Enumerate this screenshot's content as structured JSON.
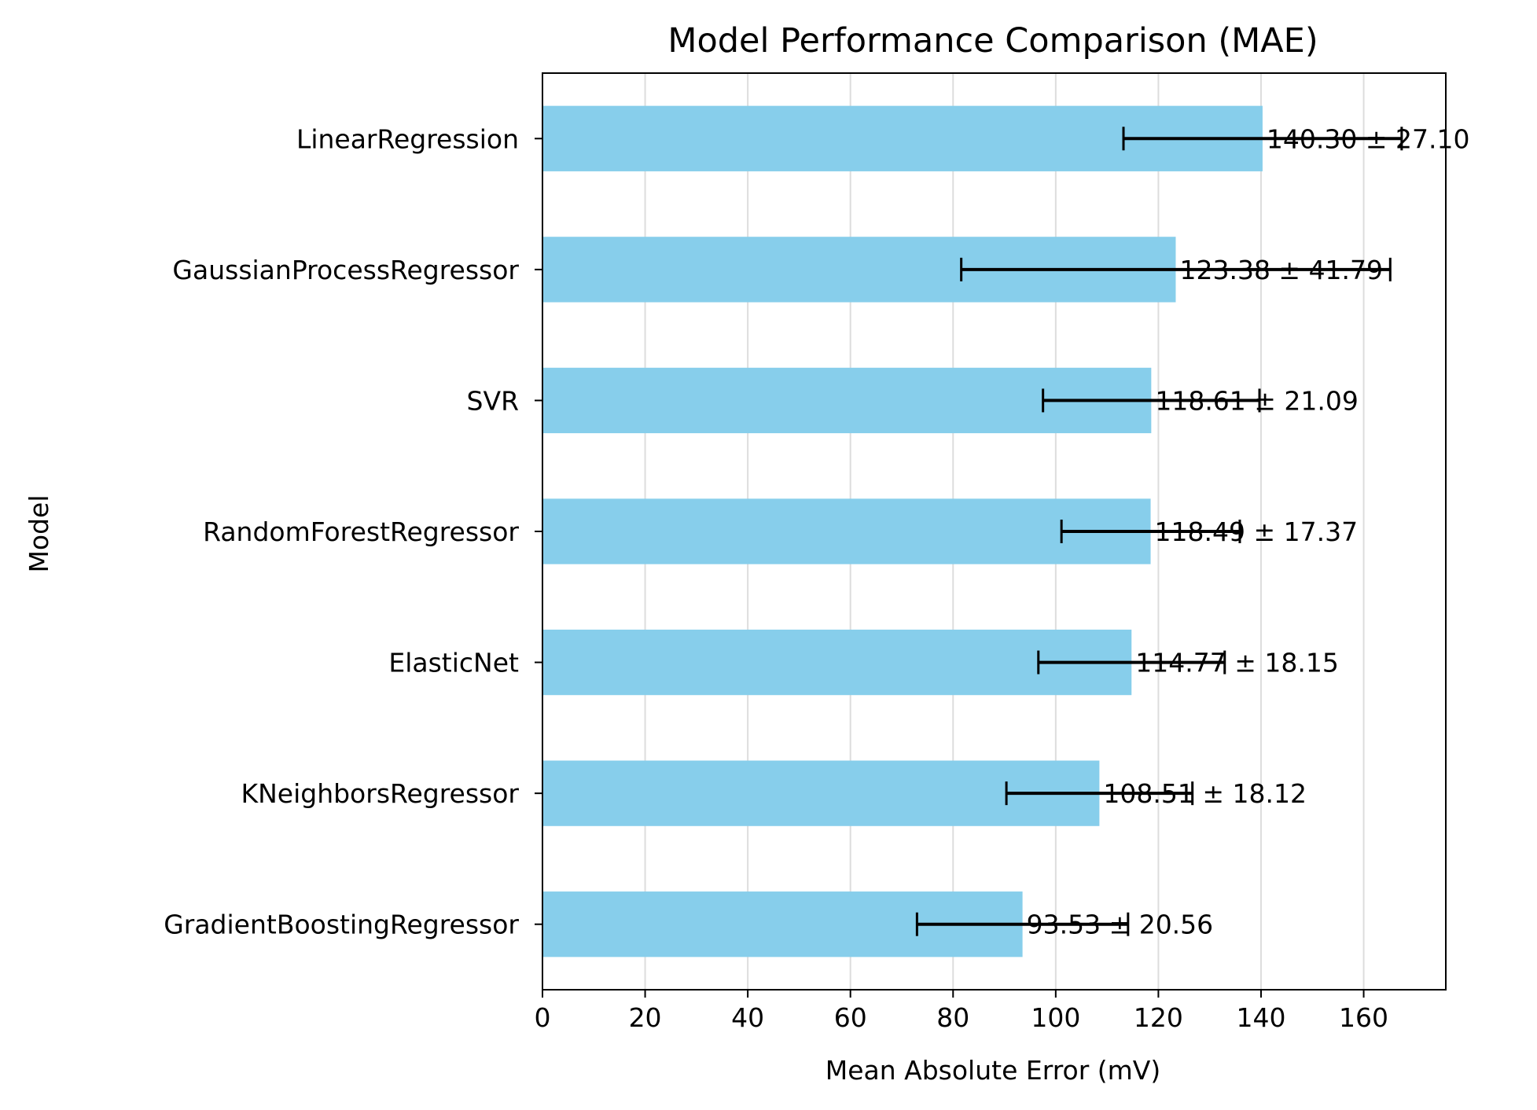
{
  "chart_data": {
    "type": "bar",
    "orientation": "horizontal",
    "title": "Model Performance Comparison (MAE)",
    "xlabel": "Mean Absolute Error (mV)",
    "ylabel": "Model",
    "xlim": [
      0,
      176
    ],
    "xticks": [
      0,
      20,
      40,
      60,
      80,
      100,
      120,
      140,
      160
    ],
    "grid": "x",
    "bar_color": "#87CEEB",
    "errorbar_color": "#000000",
    "categories": [
      "GradientBoostingRegressor",
      "KNeighborsRegressor",
      "ElasticNet",
      "RandomForestRegressor",
      "SVR",
      "GaussianProcessRegressor",
      "LinearRegression"
    ],
    "values": [
      93.53,
      108.51,
      114.77,
      118.49,
      118.61,
      123.38,
      140.3
    ],
    "errors": [
      20.56,
      18.12,
      18.15,
      17.37,
      21.09,
      41.79,
      27.1
    ],
    "data_labels": [
      "93.53 ± 20.56",
      "108.51 ± 18.12",
      "114.77 ± 18.15",
      "118.49 ± 17.37",
      "118.61 ± 21.09",
      "123.38 ± 41.79",
      "140.30 ± 27.10"
    ]
  }
}
